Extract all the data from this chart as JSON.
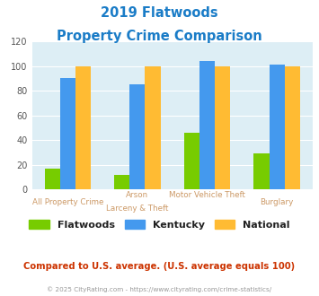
{
  "title_line1": "2019 Flatwoods",
  "title_line2": "Property Crime Comparison",
  "title_color": "#1a7cc7",
  "cat_labels_upper": [
    "",
    "Arson",
    "",
    "Motor Vehicle Theft",
    "",
    ""
  ],
  "cat_labels_lower": [
    "",
    "All Property Crime",
    "",
    "Larceny & Theft",
    "",
    "Burglary"
  ],
  "flatwoods": [
    17,
    12,
    46,
    29
  ],
  "kentucky": [
    90,
    85,
    104,
    101
  ],
  "national": [
    100,
    100,
    100,
    100
  ],
  "flatwoods_color": "#77cc00",
  "kentucky_color": "#4499ee",
  "national_color": "#ffbb33",
  "ylim": [
    0,
    120
  ],
  "yticks": [
    0,
    20,
    40,
    60,
    80,
    100,
    120
  ],
  "plot_bg": "#ddeef5",
  "legend_labels": [
    "Flatwoods",
    "Kentucky",
    "National"
  ],
  "footer_text": "Compared to U.S. average. (U.S. average equals 100)",
  "footer_color": "#cc3300",
  "credit_text": "© 2025 CityRating.com - https://www.cityrating.com/crime-statistics/",
  "credit_color": "#999999",
  "xlabel_color": "#cc9966"
}
